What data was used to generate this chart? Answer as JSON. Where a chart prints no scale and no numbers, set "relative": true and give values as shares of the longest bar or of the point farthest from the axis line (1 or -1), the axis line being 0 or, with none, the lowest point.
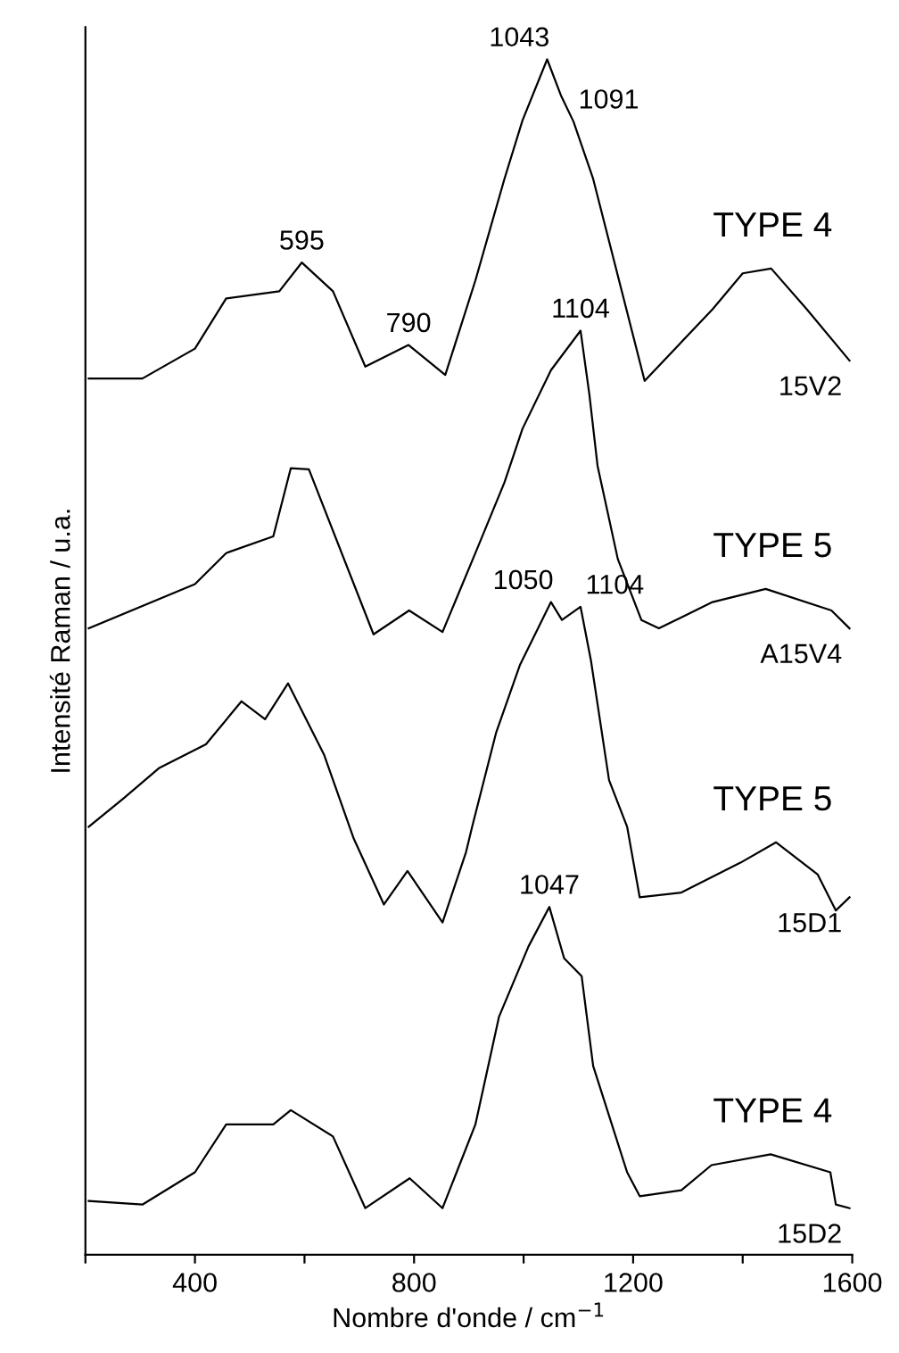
{
  "chart_data": {
    "type": "line",
    "relative": true,
    "xlabel": "Nombre d'onde / cm$^{−1}$",
    "ylabel": "Intensité Raman / u.a.",
    "xlim": [
      200,
      1600
    ],
    "xticks": [
      {
        "value": 200,
        "label": null
      },
      400,
      {
        "value": 600,
        "label": null
      },
      800,
      {
        "value": 1000,
        "label": null
      },
      1200,
      {
        "value": 1400,
        "label": null
      },
      1600
    ],
    "tick_labels": "x",
    "grid": false,
    "legend": false,
    "marker": "none",
    "line_style": "solid",
    "series": [
      {
        "name": "15V2",
        "color": "#000000",
        "x": [
          206,
          304,
          400,
          457,
          554,
          595,
          652,
          711,
          790,
          857,
          912,
          965,
          998,
          1043,
          1068,
          1091,
          1127,
          1221,
          1345,
          1400,
          1452,
          1517,
          1595
        ],
        "values": [
          0.733,
          0.733,
          0.758,
          0.8,
          0.806,
          0.83,
          0.806,
          0.743,
          0.761,
          0.736,
          0.815,
          0.9,
          0.949,
          1.0,
          0.97,
          0.948,
          0.9,
          0.731,
          0.791,
          0.821,
          0.825,
          0.791,
          0.748
        ]
      },
      {
        "name": "A15V4",
        "color": "#000000",
        "x": [
          206,
          400,
          457,
          543,
          575,
          608,
          726,
          791,
          852,
          912,
          965,
          998,
          1050,
          1104,
          1120,
          1135,
          1172,
          1215,
          1247,
          1345,
          1442,
          1562,
          1595
        ],
        "values": [
          0.524,
          0.561,
          0.587,
          0.601,
          0.658,
          0.657,
          0.519,
          0.539,
          0.521,
          0.587,
          0.646,
          0.691,
          0.74,
          0.773,
          0.72,
          0.66,
          0.582,
          0.531,
          0.524,
          0.546,
          0.557,
          0.539,
          0.524
        ]
      },
      {
        "name": "15D1",
        "color": "#000000",
        "x": [
          206,
          270,
          334,
          420,
          485,
          528,
          570,
          636,
          690,
          745,
          788,
          852,
          895,
          906,
          950,
          993,
          1050,
          1070,
          1104,
          1123,
          1156,
          1189,
          1212,
          1288,
          1396,
          1461,
          1537,
          1570,
          1595
        ],
        "values": [
          0.358,
          0.382,
          0.407,
          0.427,
          0.463,
          0.448,
          0.478,
          0.418,
          0.348,
          0.293,
          0.321,
          0.278,
          0.337,
          0.358,
          0.437,
          0.493,
          0.546,
          0.531,
          0.542,
          0.497,
          0.397,
          0.358,
          0.299,
          0.303,
          0.328,
          0.345,
          0.318,
          0.288,
          0.299
        ]
      },
      {
        "name": "15D2",
        "color": "#000000",
        "x": [
          206,
          304,
          400,
          457,
          543,
          575,
          652,
          711,
          792,
          852,
          912,
          955,
          1009,
          1047,
          1074,
          1106,
          1127,
          1189,
          1212,
          1288,
          1343,
          1451,
          1560,
          1570,
          1595
        ],
        "values": [
          0.045,
          0.042,
          0.069,
          0.109,
          0.109,
          0.121,
          0.099,
          0.039,
          0.064,
          0.039,
          0.109,
          0.199,
          0.258,
          0.291,
          0.248,
          0.233,
          0.158,
          0.069,
          0.049,
          0.054,
          0.075,
          0.084,
          0.069,
          0.042,
          0.039
        ]
      }
    ],
    "annotations": [
      {
        "text": "1043",
        "x": 1043,
        "y": 1.0
      },
      {
        "text": "1091",
        "x": 1091,
        "y": 0.948
      },
      {
        "text": "595",
        "x": 595,
        "y": 0.83
      },
      {
        "text": "790",
        "x": 790,
        "y": 0.761
      },
      "TYPE 4",
      {
        "text": "1104",
        "x": 1104,
        "y": 0.773
      },
      {
        "text": "1050",
        "x": 1050,
        "y": 0.546
      },
      {
        "text": "1104",
        "x": 1104,
        "y": 0.542
      },
      "TYPE 5",
      "TYPE 5",
      {
        "text": "1047",
        "x": 1047,
        "y": 0.291
      },
      "TYPE 4"
    ]
  }
}
